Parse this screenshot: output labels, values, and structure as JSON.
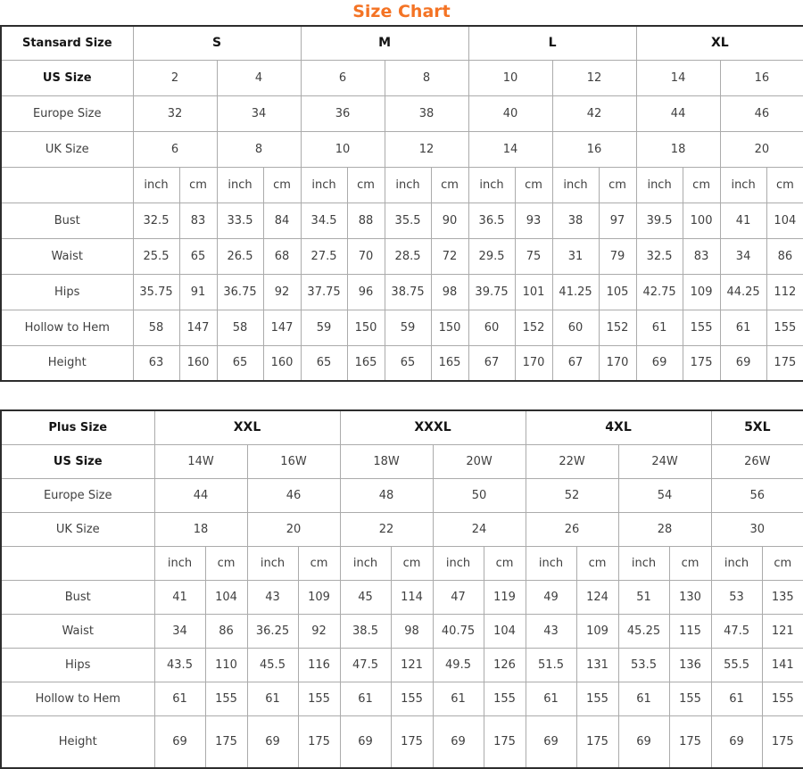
{
  "title": {
    "text": "Size Chart",
    "color": "#f47324"
  },
  "units": [
    "inch",
    "cm"
  ],
  "standard_table": {
    "corner_label": "Stansard Size",
    "groups": [
      {
        "label": "S",
        "span": 2
      },
      {
        "label": "M",
        "span": 2
      },
      {
        "label": "L",
        "span": 2
      },
      {
        "label": "XL",
        "span": 2
      }
    ],
    "size_rows": [
      {
        "label": "US Size",
        "bold": true,
        "values": [
          "2",
          "4",
          "6",
          "8",
          "10",
          "12",
          "14",
          "16"
        ]
      },
      {
        "label": "Europe Size",
        "bold": false,
        "values": [
          "32",
          "34",
          "36",
          "38",
          "40",
          "42",
          "44",
          "46"
        ]
      },
      {
        "label": "UK Size",
        "bold": false,
        "values": [
          "6",
          "8",
          "10",
          "12",
          "14",
          "16",
          "18",
          "20"
        ]
      }
    ],
    "measure_rows": [
      {
        "label": "Bust",
        "values": [
          "32.5",
          "83",
          "33.5",
          "84",
          "34.5",
          "88",
          "35.5",
          "90",
          "36.5",
          "93",
          "38",
          "97",
          "39.5",
          "100",
          "41",
          "104"
        ]
      },
      {
        "label": "Waist",
        "values": [
          "25.5",
          "65",
          "26.5",
          "68",
          "27.5",
          "70",
          "28.5",
          "72",
          "29.5",
          "75",
          "31",
          "79",
          "32.5",
          "83",
          "34",
          "86"
        ]
      },
      {
        "label": "Hips",
        "values": [
          "35.75",
          "91",
          "36.75",
          "92",
          "37.75",
          "96",
          "38.75",
          "98",
          "39.75",
          "101",
          "41.25",
          "105",
          "42.75",
          "109",
          "44.25",
          "112"
        ]
      },
      {
        "label": "Hollow to Hem",
        "values": [
          "58",
          "147",
          "58",
          "147",
          "59",
          "150",
          "59",
          "150",
          "60",
          "152",
          "60",
          "152",
          "61",
          "155",
          "61",
          "155"
        ]
      },
      {
        "label": "Height",
        "values": [
          "63",
          "160",
          "65",
          "160",
          "65",
          "165",
          "65",
          "165",
          "67",
          "170",
          "67",
          "170",
          "69",
          "175",
          "69",
          "175"
        ]
      }
    ]
  },
  "plus_table": {
    "corner_label": "Plus Size",
    "groups": [
      {
        "label": "XXL",
        "span": 2
      },
      {
        "label": "XXXL",
        "span": 2
      },
      {
        "label": "4XL",
        "span": 2
      },
      {
        "label": "5XL",
        "span": 1
      }
    ],
    "size_rows": [
      {
        "label": "US Size",
        "bold": true,
        "values": [
          "14W",
          "16W",
          "18W",
          "20W",
          "22W",
          "24W",
          "26W"
        ]
      },
      {
        "label": "Europe Size",
        "bold": false,
        "values": [
          "44",
          "46",
          "48",
          "50",
          "52",
          "54",
          "56"
        ]
      },
      {
        "label": "UK Size",
        "bold": false,
        "values": [
          "18",
          "20",
          "22",
          "24",
          "26",
          "28",
          "30"
        ]
      }
    ],
    "measure_rows": [
      {
        "label": "Bust",
        "values": [
          "41",
          "104",
          "43",
          "109",
          "45",
          "114",
          "47",
          "119",
          "49",
          "124",
          "51",
          "130",
          "53",
          "135"
        ]
      },
      {
        "label": "Waist",
        "values": [
          "34",
          "86",
          "36.25",
          "92",
          "38.5",
          "98",
          "40.75",
          "104",
          "43",
          "109",
          "45.25",
          "115",
          "47.5",
          "121"
        ]
      },
      {
        "label": "Hips",
        "values": [
          "43.5",
          "110",
          "45.5",
          "116",
          "47.5",
          "121",
          "49.5",
          "126",
          "51.5",
          "131",
          "53.5",
          "136",
          "55.5",
          "141"
        ]
      },
      {
        "label": "Hollow to Hem",
        "values": [
          "61",
          "155",
          "61",
          "155",
          "61",
          "155",
          "61",
          "155",
          "61",
          "155",
          "61",
          "155",
          "61",
          "155"
        ]
      },
      {
        "label": "Height",
        "tall": true,
        "last_value_top": true,
        "values": [
          "69",
          "175",
          "69",
          "175",
          "69",
          "175",
          "69",
          "175",
          "69",
          "175",
          "69",
          "175",
          "69",
          "175"
        ]
      }
    ]
  }
}
